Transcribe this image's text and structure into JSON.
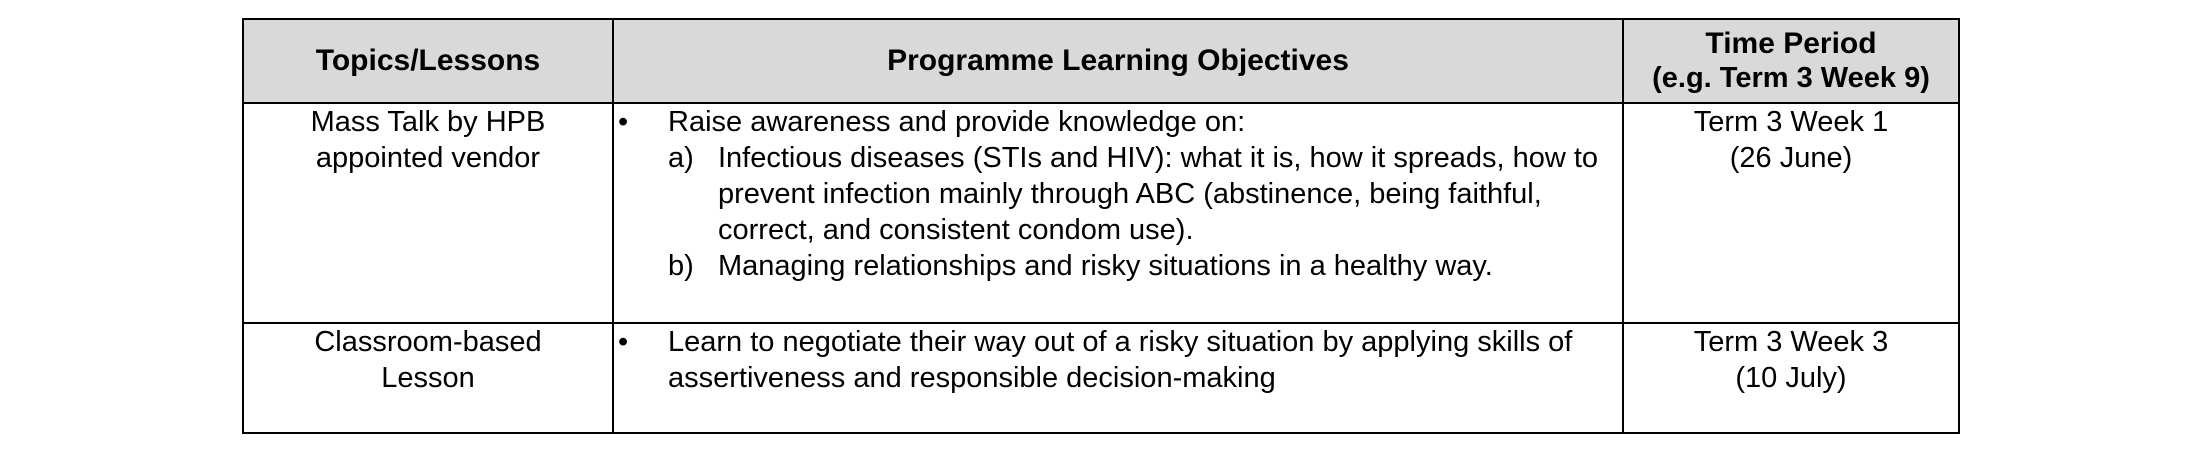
{
  "table": {
    "headers": {
      "topics": "Topics/Lessons",
      "objectives": "Programme Learning Objectives",
      "time_title": "Time Period",
      "time_sub": "(e.g. Term 3 Week 9)"
    },
    "rows": [
      {
        "topic_line1": "Mass Talk by HPB",
        "topic_line2": "appointed vendor",
        "bullet": "•",
        "objective": "Raise awareness and provide knowledge on:",
        "sub_items": [
          {
            "marker": "a)",
            "text": "Infectious diseases (STIs and HIV): what it is, how it spreads, how to prevent infection mainly through ABC (abstinence, being faithful, correct, and consistent condom use)."
          },
          {
            "marker": "b)",
            "text": "Managing relationships and risky situations in a healthy way."
          }
        ],
        "time_line1": "Term 3 Week 1",
        "time_line2": "(26 June)"
      },
      {
        "topic_line1": "Classroom-based",
        "topic_line2": "Lesson",
        "bullet": "•",
        "objective": "Learn to negotiate their way out of a risky situation by applying skills of assertiveness and responsible decision-making",
        "time_line1": "Term 3 Week 3",
        "time_line2": "(10 July)"
      }
    ]
  }
}
